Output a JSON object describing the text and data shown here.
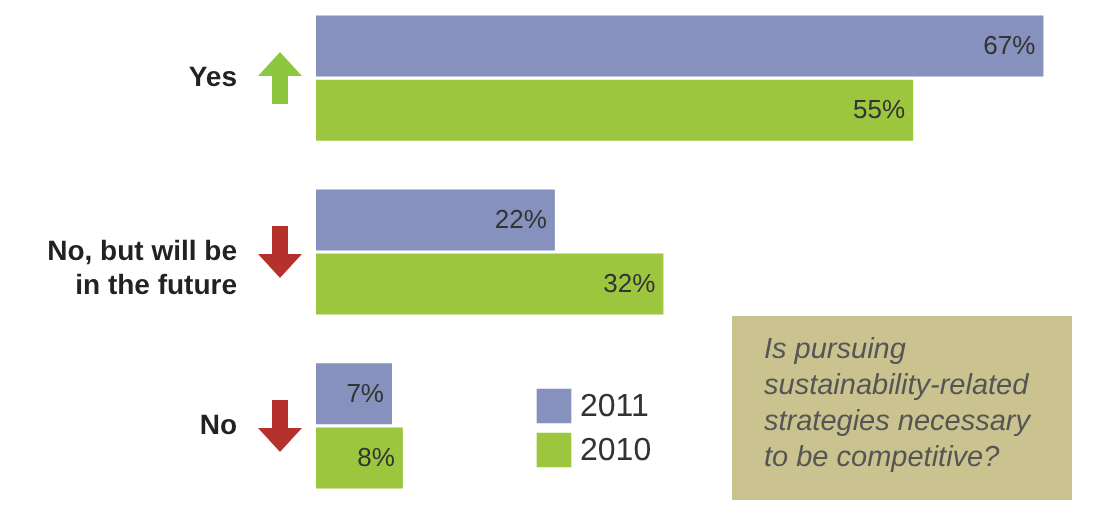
{
  "chart_data": {
    "type": "bar",
    "orientation": "horizontal",
    "categories": [
      "Yes",
      "No, but will be in the future",
      "No"
    ],
    "series": [
      {
        "name": "2011",
        "color": "#8791bd",
        "values": [
          67,
          22,
          7
        ],
        "value_labels": [
          "67%",
          "22%",
          "7%"
        ]
      },
      {
        "name": "2010",
        "color": "#9cc63e",
        "values": [
          55,
          32,
          8
        ],
        "value_labels": [
          "55%",
          "32%",
          "8%"
        ]
      }
    ],
    "legend": "bottom",
    "annotations": [
      "Is pursuing sustainability-related strategies necessary to be competitive?"
    ]
  }
}
